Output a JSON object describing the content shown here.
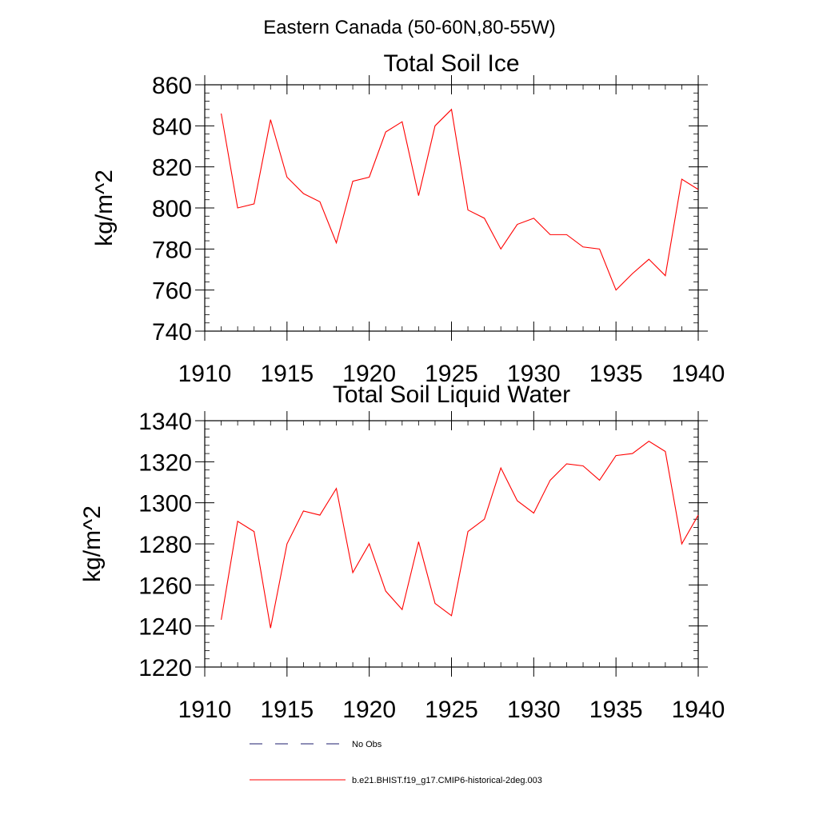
{
  "suptitle": "Eastern Canada (50-60N,80-55W)",
  "chart_data": [
    {
      "type": "line",
      "title": "Total Soil Ice",
      "ylabel": "kg/m^2",
      "xlabel": "",
      "xlim": [
        1910,
        1940
      ],
      "ylim": [
        740,
        860
      ],
      "xticks": [
        1910,
        1915,
        1920,
        1925,
        1930,
        1935,
        1940
      ],
      "yticks": [
        740,
        760,
        780,
        800,
        820,
        840,
        860
      ],
      "series": [
        {
          "name": "b.e21.BHIST.f19_g17.CMIP6-historical-2deg.003",
          "color": "#ff0000",
          "x": [
            1911,
            1912,
            1913,
            1914,
            1915,
            1916,
            1917,
            1918,
            1919,
            1920,
            1921,
            1922,
            1923,
            1924,
            1925,
            1926,
            1927,
            1928,
            1929,
            1930,
            1931,
            1932,
            1933,
            1934,
            1935,
            1936,
            1937,
            1938,
            1939,
            1940
          ],
          "y": [
            846,
            800,
            802,
            843,
            815,
            807,
            803,
            783,
            813,
            815,
            837,
            842,
            806,
            840,
            848,
            799,
            795,
            780,
            792,
            795,
            787,
            787,
            781,
            780,
            760,
            768,
            775,
            767,
            814,
            809
          ]
        }
      ]
    },
    {
      "type": "line",
      "title": "Total Soil Liquid Water",
      "ylabel": "kg/m^2",
      "xlabel": "",
      "xlim": [
        1910,
        1940
      ],
      "ylim": [
        1220,
        1340
      ],
      "xticks": [
        1910,
        1915,
        1920,
        1925,
        1930,
        1935,
        1940
      ],
      "yticks": [
        1220,
        1240,
        1260,
        1280,
        1300,
        1320,
        1340
      ],
      "series": [
        {
          "name": "b.e21.BHIST.f19_g17.CMIP6-historical-2deg.003",
          "color": "#ff0000",
          "x": [
            1911,
            1912,
            1913,
            1914,
            1915,
            1916,
            1917,
            1918,
            1919,
            1920,
            1921,
            1922,
            1923,
            1924,
            1925,
            1926,
            1927,
            1928,
            1929,
            1930,
            1931,
            1932,
            1933,
            1934,
            1935,
            1936,
            1937,
            1938,
            1939,
            1940
          ],
          "y": [
            1243,
            1291,
            1286,
            1239,
            1280,
            1296,
            1294,
            1307,
            1266,
            1280,
            1257,
            1248,
            1281,
            1251,
            1245,
            1286,
            1292,
            1317,
            1301,
            1295,
            1311,
            1319,
            1318,
            1311,
            1323,
            1324,
            1330,
            1325,
            1280,
            1294
          ]
        }
      ]
    }
  ],
  "legend": [
    {
      "label": "No Obs",
      "color": "#1c1c6e",
      "style": "dashed"
    },
    {
      "label": "b.e21.BHIST.f19_g17.CMIP6-historical-2deg.003",
      "color": "#ff0000",
      "style": "solid"
    }
  ]
}
